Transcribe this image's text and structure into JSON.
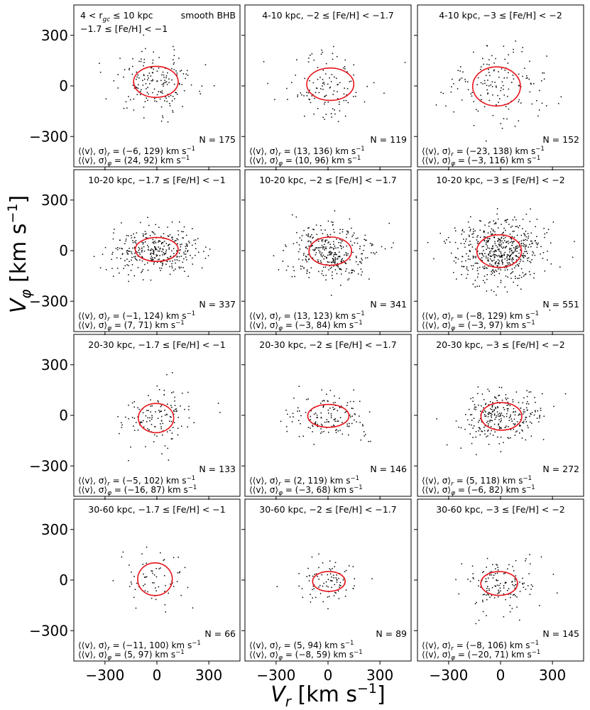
{
  "figure": {
    "ylabel": "V",
    "ylabel_sub": "φ",
    "ylabel_unit": " [km s",
    "ylabel_exp": "−1",
    "ylabel_close": "]",
    "xlabel": "V",
    "xlabel_sub": "r",
    "xlabel_unit": " [km s",
    "xlabel_exp": "−1",
    "xlabel_close": "]",
    "xlim": [
      -480,
      480
    ],
    "ylim": [
      -480,
      480
    ],
    "x_ticks": [
      -300,
      0,
      300
    ],
    "y_ticks": [
      -300,
      0,
      300
    ],
    "x_tick_labels": [
      "−300",
      "0",
      "300"
    ],
    "y_tick_labels": [
      "300",
      "0",
      "−300"
    ],
    "ellipse_color": "#e8141b",
    "point_color": "#000000"
  },
  "chart_data": [
    {
      "type": "scatter",
      "title": "4 < r_gc ≤ 10 kpc, −1.7 ≤ [Fe/H] < −1",
      "title_line1": "4 < r",
      "title_sub": "gc",
      "title_rest": " ≤  10 kpc",
      "title_line2": "−1.7 ≤ [Fe/H] < −1",
      "tag": "smooth BHB",
      "n_label": "N = 175",
      "n": 175,
      "vr_mean": -6,
      "vr_sigma": 129,
      "vphi_mean": 24,
      "vphi_sigma": 92,
      "stat_r": "(−6, 129) km s",
      "stat_phi": "(24, 92) km s"
    },
    {
      "type": "scatter",
      "title": "4-10 kpc, −2 ≤ [Fe/H] < −1.7",
      "n_label": "N = 119",
      "n": 119,
      "vr_mean": 13,
      "vr_sigma": 136,
      "vphi_mean": 10,
      "vphi_sigma": 96,
      "stat_r": "(13, 136) km s",
      "stat_phi": "(10, 96) km s"
    },
    {
      "type": "scatter",
      "title": "4-10 kpc, −3 ≤ [Fe/H] < −2",
      "n_label": "N = 152",
      "n": 152,
      "vr_mean": -23,
      "vr_sigma": 138,
      "vphi_mean": -3,
      "vphi_sigma": 116,
      "stat_r": "(−23, 138) km s",
      "stat_phi": "(−3, 116) km s"
    },
    {
      "type": "scatter",
      "title": "10-20 kpc, −1.7 ≤ [Fe/H] < −1",
      "n_label": "N = 337",
      "n": 337,
      "vr_mean": -1,
      "vr_sigma": 124,
      "vphi_mean": 7,
      "vphi_sigma": 71,
      "stat_r": "(−1, 124) km s",
      "stat_phi": "(7, 71) km s"
    },
    {
      "type": "scatter",
      "title": "10-20 kpc, −2 ≤ [Fe/H] < −1.7",
      "n_label": "N = 341",
      "n": 341,
      "vr_mean": 13,
      "vr_sigma": 123,
      "vphi_mean": -3,
      "vphi_sigma": 84,
      "stat_r": "(13, 123) km s",
      "stat_phi": "(−3, 84) km s"
    },
    {
      "type": "scatter",
      "title": "10-20 kpc, −3 ≤ [Fe/H] < −2",
      "n_label": "N = 551",
      "n": 551,
      "vr_mean": -8,
      "vr_sigma": 129,
      "vphi_mean": -3,
      "vphi_sigma": 97,
      "stat_r": "(−8, 129) km s",
      "stat_phi": "(−3, 97) km s"
    },
    {
      "type": "scatter",
      "title": "20-30 kpc, −1.7 ≤ [Fe/H] < −1",
      "n_label": "N = 133",
      "n": 133,
      "vr_mean": -5,
      "vr_sigma": 102,
      "vphi_mean": -16,
      "vphi_sigma": 87,
      "stat_r": "(−5, 102) km s",
      "stat_phi": "(−16, 87) km s"
    },
    {
      "type": "scatter",
      "title": "20-30 kpc, −2 ≤ [Fe/H] < −1.7",
      "n_label": "N = 146",
      "n": 146,
      "vr_mean": 2,
      "vr_sigma": 119,
      "vphi_mean": -3,
      "vphi_sigma": 68,
      "stat_r": "(2, 119) km s",
      "stat_phi": "(−3, 68) km s"
    },
    {
      "type": "scatter",
      "title": "20-30 kpc, −3 ≤ [Fe/H] < −2",
      "n_label": "N = 272",
      "n": 272,
      "vr_mean": 5,
      "vr_sigma": 118,
      "vphi_mean": -6,
      "vphi_sigma": 82,
      "stat_r": "(5, 118) km s",
      "stat_phi": "(−6, 82) km s"
    },
    {
      "type": "scatter",
      "title": "30-60 kpc, −1.7 ≤ [Fe/H] < −1",
      "n_label": "N = 66",
      "n": 66,
      "vr_mean": -11,
      "vr_sigma": 100,
      "vphi_mean": 5,
      "vphi_sigma": 97,
      "stat_r": "(−11, 100) km s",
      "stat_phi": "(5, 97) km s"
    },
    {
      "type": "scatter",
      "title": "30-60 kpc, −2 ≤ [Fe/H] < −1.7",
      "n_label": "N = 89",
      "n": 89,
      "vr_mean": 5,
      "vr_sigma": 94,
      "vphi_mean": -8,
      "vphi_sigma": 59,
      "stat_r": "(5, 94) km s",
      "stat_phi": "(−8, 59) km s"
    },
    {
      "type": "scatter",
      "title": "30-60 kpc, −3 ≤ [Fe/H] < −2",
      "n_label": "N = 145",
      "n": 145,
      "vr_mean": -8,
      "vr_sigma": 106,
      "vphi_mean": -20,
      "vphi_sigma": 71,
      "stat_r": "(−8, 106) km s",
      "stat_phi": "(−20, 71) km s"
    }
  ]
}
